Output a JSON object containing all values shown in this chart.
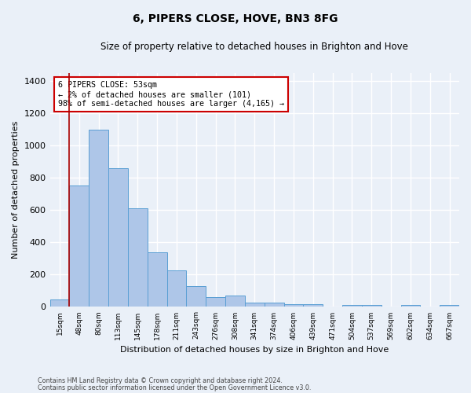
{
  "title": "6, PIPERS CLOSE, HOVE, BN3 8FG",
  "subtitle": "Size of property relative to detached houses in Brighton and Hove",
  "xlabel": "Distribution of detached houses by size in Brighton and Hove",
  "ylabel": "Number of detached properties",
  "footnote1": "Contains HM Land Registry data © Crown copyright and database right 2024.",
  "footnote2": "Contains public sector information licensed under the Open Government Licence v3.0.",
  "categories": [
    "15sqm",
    "48sqm",
    "80sqm",
    "113sqm",
    "145sqm",
    "178sqm",
    "211sqm",
    "243sqm",
    "276sqm",
    "308sqm",
    "341sqm",
    "374sqm",
    "406sqm",
    "439sqm",
    "471sqm",
    "504sqm",
    "537sqm",
    "569sqm",
    "602sqm",
    "634sqm",
    "667sqm"
  ],
  "values": [
    47,
    755,
    1100,
    862,
    612,
    340,
    228,
    130,
    63,
    68,
    27,
    27,
    18,
    15,
    0,
    10,
    12,
    0,
    10,
    0,
    10
  ],
  "bar_color": "#aec6e8",
  "bar_edge_color": "#5a9fd4",
  "bg_color": "#eaf0f8",
  "grid_color": "#ffffff",
  "vline_color": "#aa0000",
  "annotation_text": "6 PIPERS CLOSE: 53sqm\n← 2% of detached houses are smaller (101)\n98% of semi-detached houses are larger (4,165) →",
  "annotation_box_color": "#ffffff",
  "annotation_box_edge": "#cc0000",
  "ylim": [
    0,
    1450
  ],
  "yticks": [
    0,
    200,
    400,
    600,
    800,
    1000,
    1200,
    1400
  ]
}
